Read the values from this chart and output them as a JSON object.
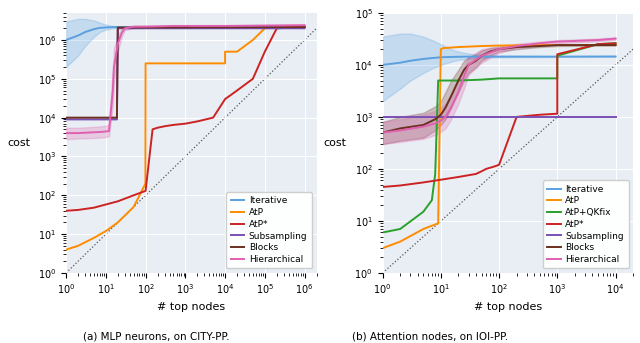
{
  "left_title": "(a) MLP neurons, on CITY-PP.",
  "right_title": "(b) Attention nodes, on IOI-PP.",
  "xlabel": "# top nodes",
  "ylabel": "cost",
  "colors": {
    "Iterative": "#5aa0e0",
    "AtP": "#ff8c00",
    "AtP+QKfix": "#2ca02c",
    "AtP*": "#cc2222",
    "Subsampling": "#7b4fb5",
    "Blocks": "#6b3020",
    "Hierarchical": "#e060b0"
  },
  "bg_color": "#e8eef4",
  "grid_color": "#ffffff",
  "lw": 1.4,
  "fill_alpha": 0.25
}
